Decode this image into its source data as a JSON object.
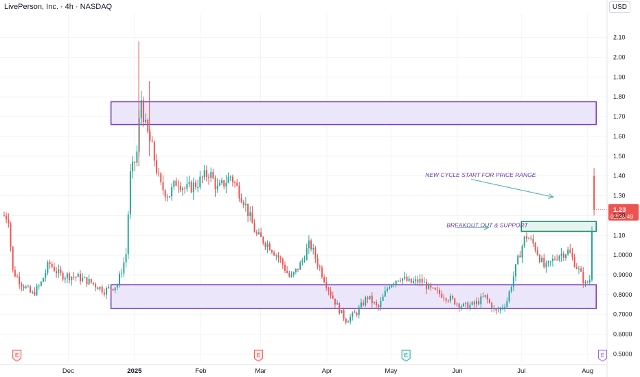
{
  "header": {
    "title": "LivePerson, Inc. · 4h · NASDAQ",
    "currency": "USD"
  },
  "colors": {
    "up": "#26a69a",
    "down": "#ef5350",
    "zone_stroke": "#7b3fc4",
    "zone_fill": "#ece6fb",
    "breakout_stroke": "#1f8a6a",
    "breakout_fill": "#e4f5ef",
    "annotation": "#6a3ab2"
  },
  "chart_data": {
    "type": "candlestick",
    "title": "LivePerson, Inc. · 4h · NASDAQ",
    "yaxis": {
      "ticks": [
        0.5,
        0.6,
        0.7,
        0.8,
        0.9,
        1.0,
        1.1,
        1.2,
        1.3,
        1.4,
        1.5,
        1.6,
        1.7,
        1.8,
        1.9,
        2.0,
        2.1
      ],
      "tick_labels": [
        "0.5000",
        "0.6000",
        "0.7000",
        "0.8000",
        "0.9000",
        "1.0000",
        "1.10",
        "1.20",
        "1.30",
        "1.40",
        "1.50",
        "1.60",
        "1.70",
        "1.80",
        "1.90",
        "2.00",
        "2.10"
      ],
      "range": [
        0.46,
        2.22
      ]
    },
    "xaxis": {
      "ticks": [
        "Dec",
        "2025",
        "Feb",
        "Mar",
        "Apr",
        "May",
        "Jun",
        "Jul",
        "Aug"
      ],
      "tick_dates": [
        "2024-12-01",
        "2025-01-01",
        "2025-02-01",
        "2025-03-01",
        "2025-04-01",
        "2025-05-01",
        "2025-06-01",
        "2025-07-01",
        "2025-08-01"
      ],
      "range": [
        "2024-11-01",
        "2025-08-12"
      ]
    },
    "price_points": [
      [
        "2024-11-01",
        1.2
      ],
      [
        "2024-11-03",
        1.19
      ],
      [
        "2024-11-05",
        0.92
      ],
      [
        "2024-11-09",
        0.86
      ],
      [
        "2024-11-14",
        0.8
      ],
      [
        "2024-11-18",
        0.85
      ],
      [
        "2024-11-22",
        0.96
      ],
      [
        "2024-11-27",
        0.9
      ],
      [
        "2024-12-05",
        0.89
      ],
      [
        "2024-12-12",
        0.86
      ],
      [
        "2024-12-18",
        0.82
      ],
      [
        "2024-12-24",
        0.85
      ],
      [
        "2024-12-28",
        1.0
      ],
      [
        "2024-12-30",
        1.4
      ],
      [
        "2025-01-02",
        1.5
      ],
      [
        "2025-01-04",
        1.8
      ],
      [
        "2025-01-06",
        1.65
      ],
      [
        "2025-01-09",
        1.55
      ],
      [
        "2025-01-13",
        1.35
      ],
      [
        "2025-01-17",
        1.3
      ],
      [
        "2025-01-21",
        1.38
      ],
      [
        "2025-01-25",
        1.33
      ],
      [
        "2025-01-30",
        1.36
      ],
      [
        "2025-02-05",
        1.42
      ],
      [
        "2025-02-09",
        1.33
      ],
      [
        "2025-02-15",
        1.4
      ],
      [
        "2025-02-21",
        1.28
      ],
      [
        "2025-02-27",
        1.1
      ],
      [
        "2025-03-05",
        1.05
      ],
      [
        "2025-03-10",
        0.98
      ],
      [
        "2025-03-15",
        0.88
      ],
      [
        "2025-03-20",
        0.96
      ],
      [
        "2025-03-24",
        1.06
      ],
      [
        "2025-03-28",
        0.95
      ],
      [
        "2025-04-03",
        0.8
      ],
      [
        "2025-04-07",
        0.72
      ],
      [
        "2025-04-10",
        0.67
      ],
      [
        "2025-04-15",
        0.71
      ],
      [
        "2025-04-20",
        0.79
      ],
      [
        "2025-04-25",
        0.73
      ],
      [
        "2025-04-30",
        0.85
      ],
      [
        "2025-05-05",
        0.89
      ],
      [
        "2025-05-10",
        0.86
      ],
      [
        "2025-05-15",
        0.87
      ],
      [
        "2025-05-20",
        0.82
      ],
      [
        "2025-05-25",
        0.8
      ],
      [
        "2025-05-30",
        0.77
      ],
      [
        "2025-06-04",
        0.74
      ],
      [
        "2025-06-09",
        0.75
      ],
      [
        "2025-06-14",
        0.79
      ],
      [
        "2025-06-19",
        0.71
      ],
      [
        "2025-06-24",
        0.76
      ],
      [
        "2025-06-27",
        0.88
      ],
      [
        "2025-06-30",
        1.0
      ],
      [
        "2025-07-03",
        1.1
      ],
      [
        "2025-07-07",
        1.05
      ],
      [
        "2025-07-12",
        0.93
      ],
      [
        "2025-07-18",
        1.0
      ],
      [
        "2025-07-23",
        1.02
      ],
      [
        "2025-07-28",
        0.92
      ],
      [
        "2025-07-31",
        0.85
      ],
      [
        "2025-08-02",
        0.88
      ],
      [
        "2025-08-04",
        1.4
      ],
      [
        "2025-08-04",
        1.23
      ]
    ],
    "last_price": {
      "value": 1.23,
      "label": "1.23",
      "countdown": "02:36:49"
    },
    "zones": [
      {
        "name": "resistance-zone",
        "y_low": 1.66,
        "y_high": 1.775,
        "x_start": "2024-12-21",
        "x_end": "2025-08-05"
      },
      {
        "name": "support-zone",
        "y_low": 0.73,
        "y_high": 0.85,
        "x_start": "2024-12-21",
        "x_end": "2025-08-05"
      },
      {
        "name": "breakout-zone",
        "y_low": 1.12,
        "y_high": 1.17,
        "x_start": "2025-07-01",
        "x_end": "2025-08-05"
      }
    ],
    "annotations": [
      {
        "text": "NEW CYCLE START FOR PRICE RANGE",
        "date": "2025-05-17",
        "y": 1.395
      },
      {
        "text": "BREAKOUT OUT & SUPPORT",
        "date": "2025-05-27",
        "y": 1.14
      }
    ],
    "event_markers": [
      {
        "label": "E",
        "date": "2024-11-07",
        "kind": "past"
      },
      {
        "label": "E",
        "date": "2025-02-28",
        "kind": "past"
      },
      {
        "label": "E",
        "date": "2025-05-08",
        "kind": "past-up"
      },
      {
        "label": "E",
        "date": "2025-08-08",
        "kind": "upcoming"
      }
    ]
  }
}
